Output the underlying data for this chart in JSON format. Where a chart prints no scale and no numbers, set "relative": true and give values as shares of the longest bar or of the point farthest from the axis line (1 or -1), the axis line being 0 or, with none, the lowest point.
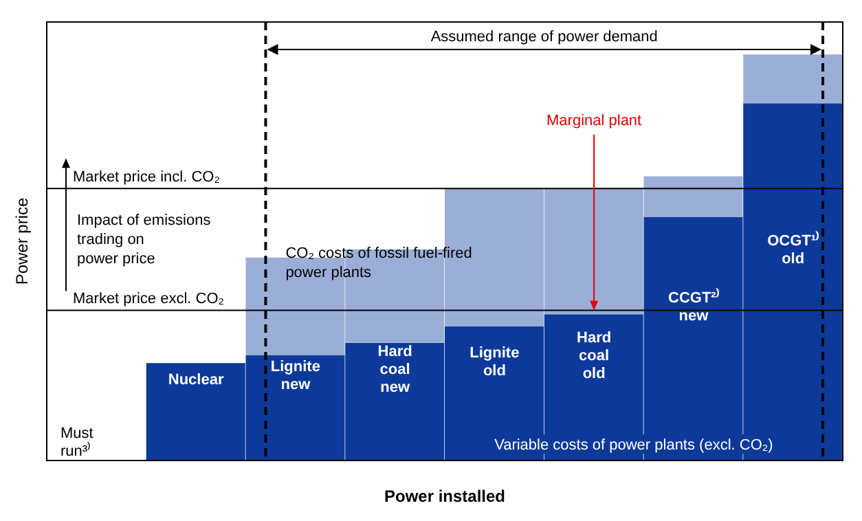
{
  "chart_data": {
    "type": "bar",
    "stacked": true,
    "relative": true,
    "xlabel": "Power installed",
    "ylabel": "Power price",
    "categories": [
      "Must run³⁾",
      "Nuclear",
      "Lignite new",
      "Hard coal new",
      "Lignite old",
      "Hard coal old",
      "CCGT²⁾ new",
      "OCGT¹⁾ old"
    ],
    "series": [
      {
        "name": "Variable costs of power plants (excl. CO₂)",
        "color": "#0d3a9a",
        "values": [
          0,
          0.24,
          0.26,
          0.29,
          0.33,
          0.36,
          0.6,
          0.88
        ]
      },
      {
        "name": "CO₂ costs of fossil fuel-fired power plants",
        "color": "#9aaed8",
        "values": [
          0,
          0,
          0.24,
          0.23,
          0.34,
          0.31,
          0.1,
          0.12
        ]
      }
    ],
    "ref_lines": [
      {
        "axis": "y",
        "value": 0.67,
        "label": "Market price incl. CO₂"
      },
      {
        "axis": "y",
        "value": 0.37,
        "label": "Market price excl. CO₂"
      },
      {
        "axis": "x",
        "value": "Lignite new",
        "line_style": "dashed"
      },
      {
        "axis": "x",
        "value": "OCGT¹⁾ old",
        "line_style": "dashed"
      }
    ],
    "annotations": [
      "Impact of emissions trading on power price",
      {
        "text": "Marginal plant",
        "x": "Hard coal old",
        "y": 0.37
      },
      "Assumed range of power demand"
    ]
  }
}
